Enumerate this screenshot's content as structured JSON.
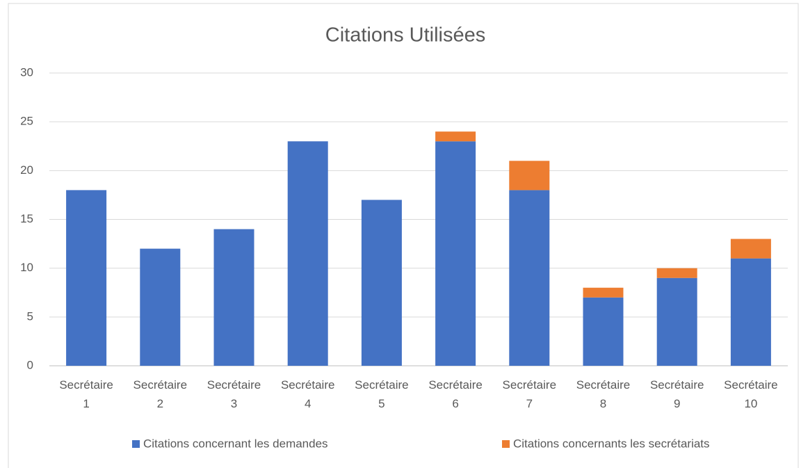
{
  "chart_data": {
    "type": "stacked_bar",
    "title": "Citations Utilisées",
    "categories": [
      "Secrétaire 1",
      "Secrétaire 2",
      "Secrétaire 3",
      "Secrétaire 4",
      "Secrétaire 5",
      "Secrétaire 6",
      "Secrétaire 7",
      "Secrétaire 8",
      "Secrétaire 9",
      "Secrétaire 10"
    ],
    "series": [
      {
        "name": "Citations concernant les demandes",
        "color": "#4472c4",
        "values": [
          18,
          12,
          14,
          23,
          17,
          23,
          18,
          7,
          9,
          11
        ]
      },
      {
        "name": "Citations concernants les secrétariats",
        "color": "#ed7d31",
        "values": [
          0,
          0,
          0,
          0,
          0,
          1,
          3,
          1,
          1,
          2
        ]
      }
    ],
    "ylim": [
      0,
      30
    ],
    "yticks": [
      0,
      5,
      10,
      15,
      20,
      25,
      30
    ],
    "grid": true,
    "legend": "bottom"
  }
}
